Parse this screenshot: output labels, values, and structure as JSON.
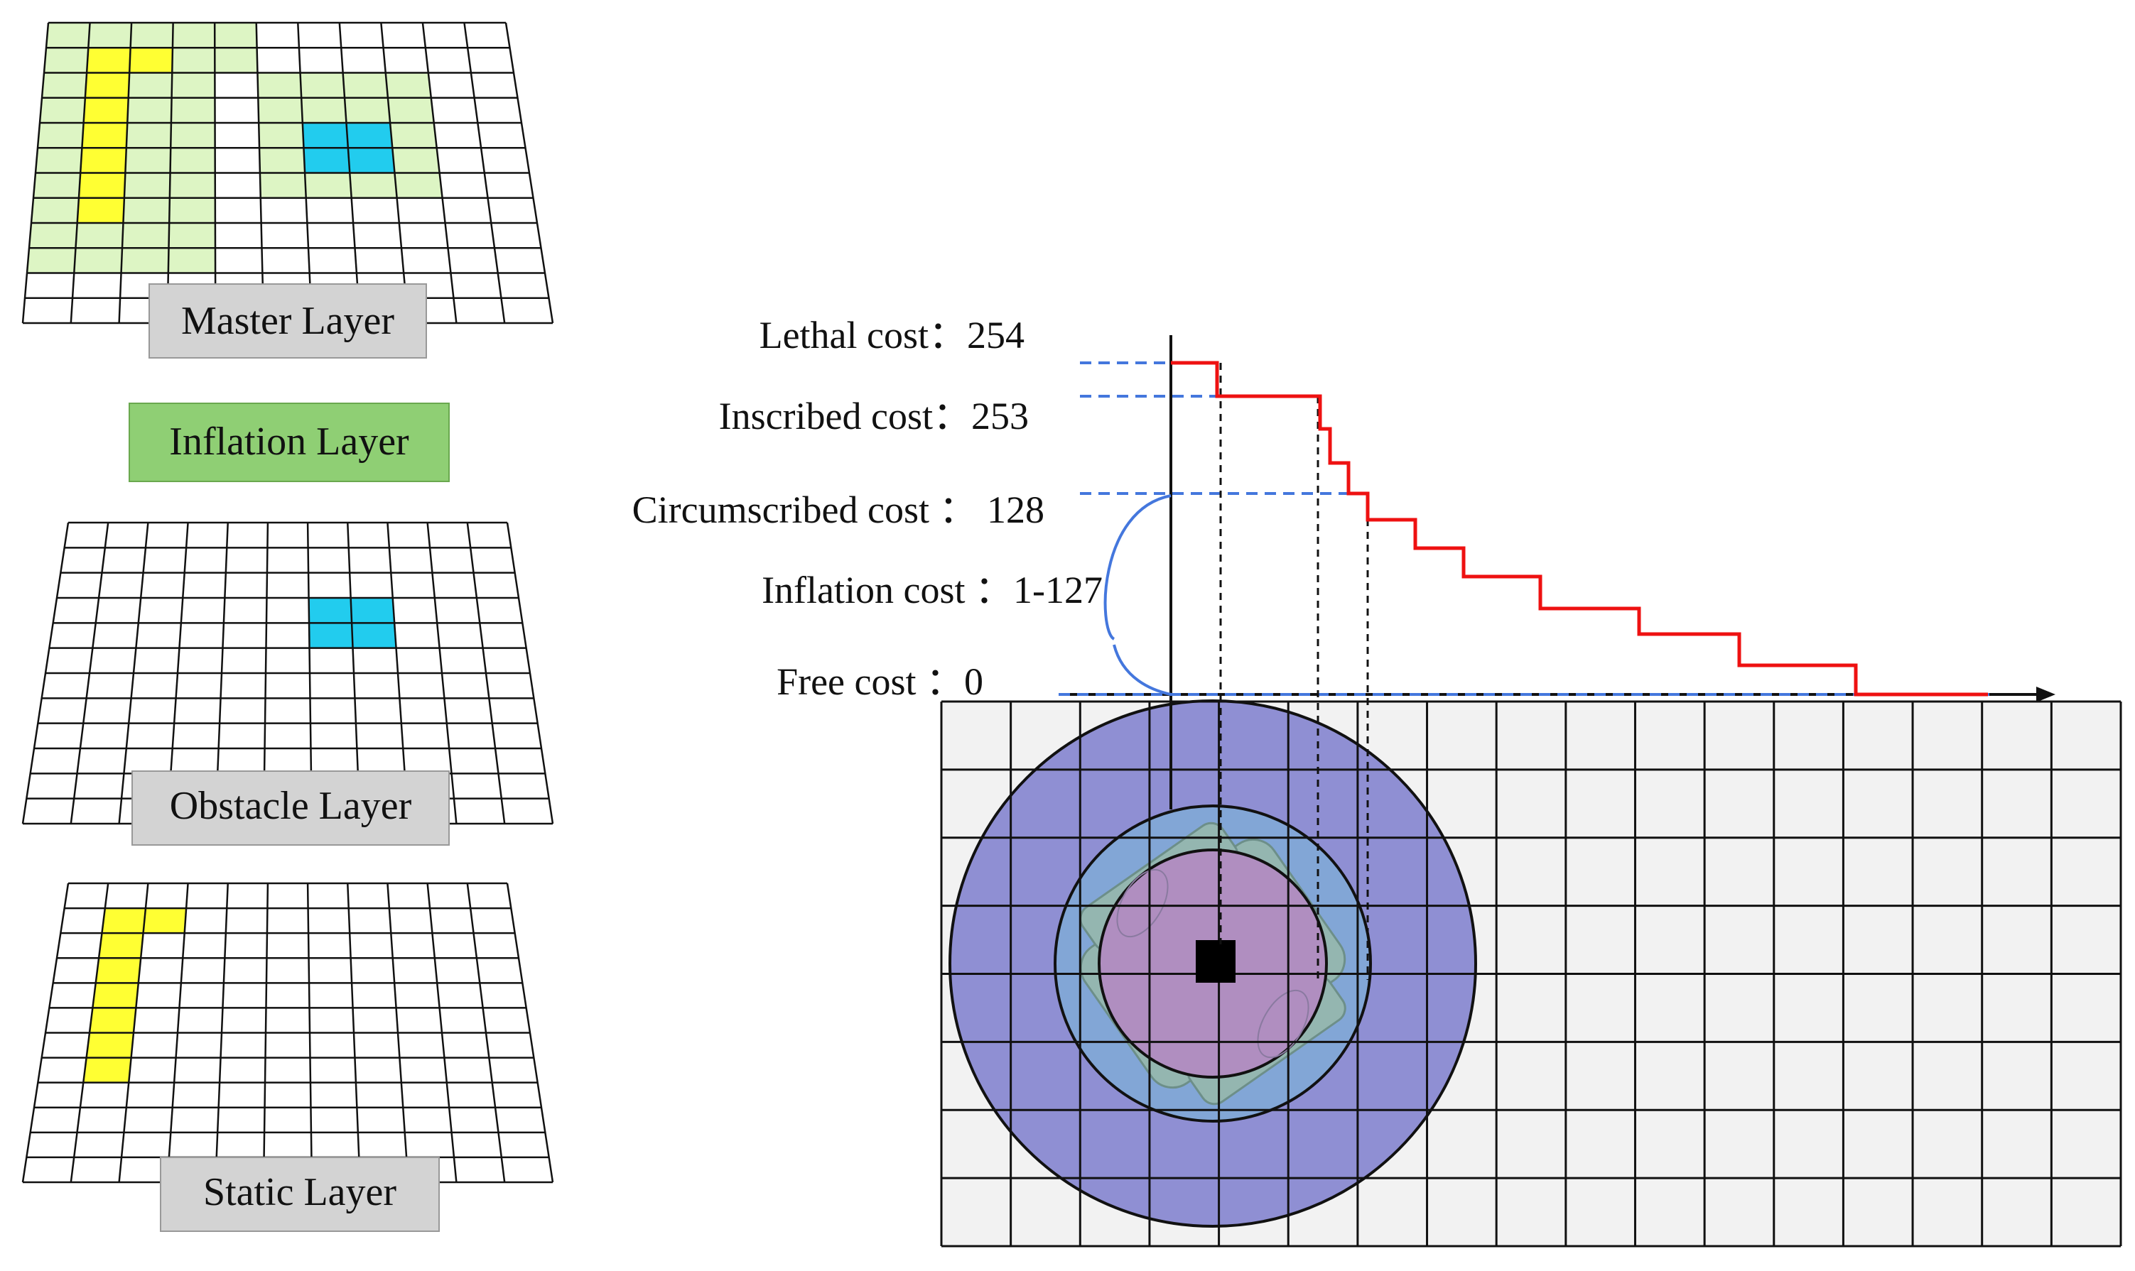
{
  "colors": {
    "yellow": "#ffff33",
    "cyan": "#22ccee",
    "light_green": "#ddf5c4",
    "grid_line": "#111111",
    "label_gray": "#d4d4d4",
    "inflation_green": "#8fcf74",
    "outer_circle": "#8f8fd3",
    "mid_circle": "#82a6d6",
    "inner_circle": "#b08ec0",
    "robot": "#94b6b0",
    "step_red": "#ee1111",
    "dash_blue": "#4477dd",
    "grid_bg": "#f2f2f2"
  },
  "layers": {
    "master": {
      "label": "Master Layer"
    },
    "inflation": {
      "label": "Inflation Layer"
    },
    "obstacle": {
      "label": "Obstacle Layer"
    },
    "static": {
      "label": "Static Layer"
    }
  },
  "costs": {
    "lethal": {
      "label": "Lethal cost：254",
      "value": 254
    },
    "inscribed": {
      "label": "Inscribed cost：253",
      "value": 253
    },
    "circumscribed": {
      "label": "Circumscribed cost ：  128",
      "value": 128
    },
    "inflation": {
      "label": "Inflation cost ：1-127"
    },
    "free": {
      "label": "Free cost ：0",
      "value": 0
    }
  },
  "icons": {
    "robot": "robot-icon",
    "axis_arrow": "arrow-right-icon"
  }
}
